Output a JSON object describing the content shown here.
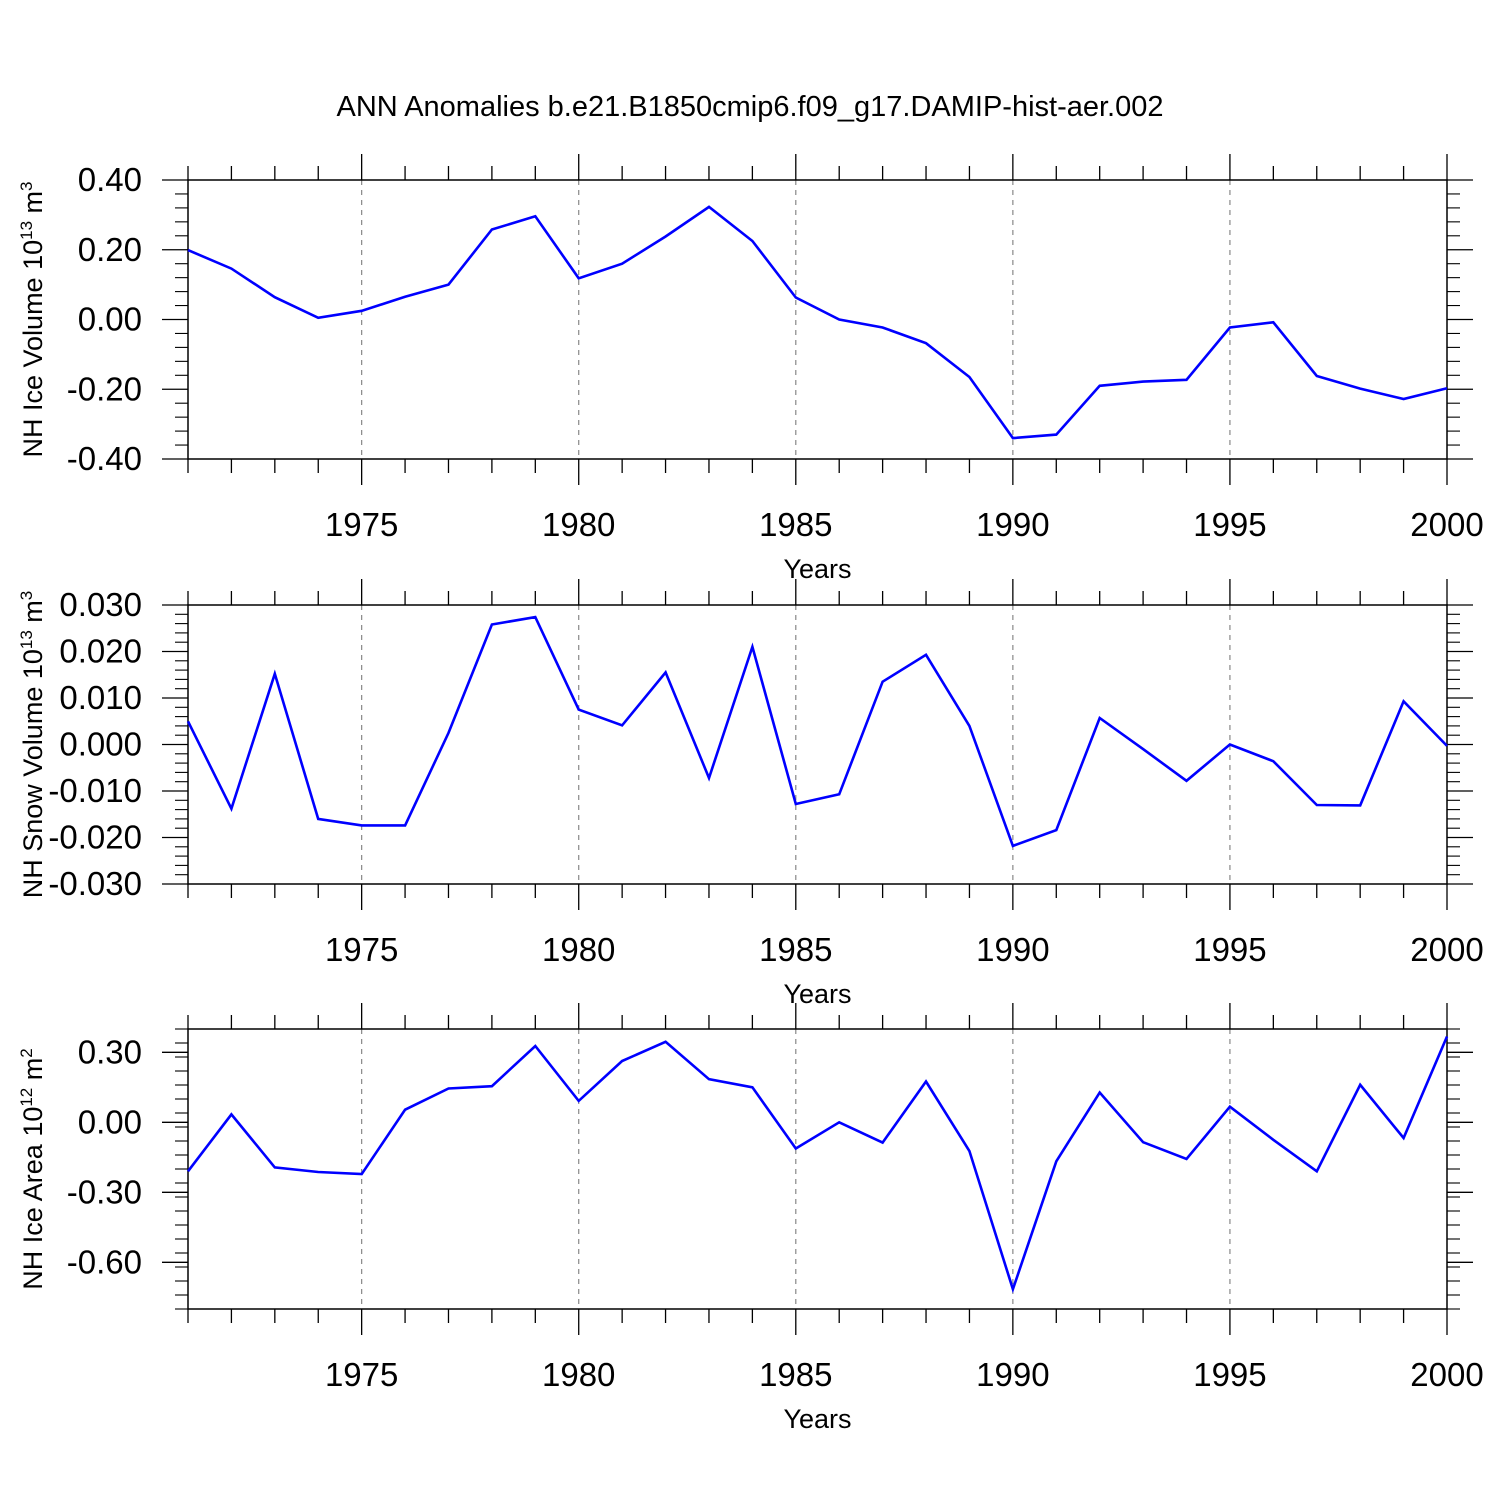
{
  "title": "ANN Anomalies b.e21.B1850cmip6.f09_g17.DAMIP-hist-aer.002",
  "line_color": "#0000ff",
  "chart_data": [
    {
      "type": "line",
      "xlabel": "Years",
      "ylabel": {
        "main": "NH Ice Volume 10",
        "exp": "13",
        "unit": " m",
        "unit_exp": "3"
      },
      "xlim": [
        1971,
        2000
      ],
      "ylim": [
        -0.4,
        0.4
      ],
      "xticks": [
        1975,
        1980,
        1985,
        1990,
        1995,
        2000
      ],
      "xtick_labels": [
        "1975",
        "1980",
        "1985",
        "1990",
        "1995",
        "2000"
      ],
      "yticks": [
        0.4,
        0.2,
        0.0,
        -0.2,
        -0.4
      ],
      "ytick_labels": [
        "0.40",
        "0.20",
        "0.00",
        "-0.20",
        "-0.40"
      ],
      "x": [
        1971,
        1972,
        1973,
        1974,
        1975,
        1976,
        1977,
        1978,
        1979,
        1980,
        1981,
        1982,
        1983,
        1984,
        1985,
        1986,
        1987,
        1988,
        1989,
        1990,
        1991,
        1992,
        1993,
        1994,
        1995,
        1996,
        1997,
        1998,
        1999,
        2000
      ],
      "values": [
        0.199,
        0.146,
        0.064,
        0.005,
        0.025,
        0.065,
        0.1,
        0.258,
        0.296,
        0.118,
        0.16,
        0.238,
        0.323,
        0.225,
        0.063,
        0.0,
        -0.023,
        -0.068,
        -0.165,
        -0.34,
        -0.33,
        -0.19,
        -0.178,
        -0.173,
        -0.023,
        -0.008,
        -0.162,
        -0.198,
        -0.228,
        -0.197
      ]
    },
    {
      "type": "line",
      "xlabel": "Years",
      "ylabel": {
        "main": "NH Snow Volume 10",
        "exp": "13",
        "unit": " m",
        "unit_exp": "3"
      },
      "xlim": [
        1971,
        2000
      ],
      "ylim": [
        -0.03,
        0.03
      ],
      "xticks": [
        1975,
        1980,
        1985,
        1990,
        1995,
        2000
      ],
      "xtick_labels": [
        "1975",
        "1980",
        "1985",
        "1990",
        "1995",
        "2000"
      ],
      "yticks": [
        0.03,
        0.02,
        0.01,
        0.0,
        -0.01,
        -0.02,
        -0.03
      ],
      "ytick_labels": [
        "0.030",
        "0.020",
        "0.010",
        "0.000",
        "-0.010",
        "-0.020",
        "-0.030"
      ],
      "x": [
        1971,
        1972,
        1973,
        1974,
        1975,
        1976,
        1977,
        1978,
        1979,
        1980,
        1981,
        1982,
        1983,
        1984,
        1985,
        1986,
        1987,
        1988,
        1989,
        1990,
        1991,
        1992,
        1993,
        1994,
        1995,
        1996,
        1997,
        1998,
        1999,
        2000
      ],
      "values": [
        0.005,
        -0.0138,
        0.0152,
        -0.016,
        -0.0174,
        -0.0174,
        0.0025,
        0.0258,
        0.0274,
        0.0075,
        0.0041,
        0.0155,
        -0.0072,
        0.021,
        -0.0128,
        -0.0107,
        0.0135,
        0.0193,
        0.004,
        -0.0218,
        -0.0184,
        0.0057,
        -0.001,
        -0.0078,
        0.0,
        -0.0036,
        -0.013,
        -0.0131,
        0.0093,
        -0.0003
      ]
    },
    {
      "type": "line",
      "xlabel": "Years",
      "ylabel": {
        "main": "NH Ice Area 10",
        "exp": "12",
        "unit": " m",
        "unit_exp": "2"
      },
      "xlim": [
        1971,
        2000
      ],
      "ylim": [
        -0.8,
        0.4
      ],
      "xticks": [
        1975,
        1980,
        1985,
        1990,
        1995,
        2000
      ],
      "xtick_labels": [
        "1975",
        "1980",
        "1985",
        "1990",
        "1995",
        "2000"
      ],
      "yticks": [
        0.3,
        0.0,
        -0.3,
        -0.6
      ],
      "ytick_labels": [
        "0.30",
        "0.00",
        "-0.30",
        "-0.60"
      ],
      "x": [
        1971,
        1972,
        1973,
        1974,
        1975,
        1976,
        1977,
        1978,
        1979,
        1980,
        1981,
        1982,
        1983,
        1984,
        1985,
        1986,
        1987,
        1988,
        1989,
        1990,
        1991,
        1992,
        1993,
        1994,
        1995,
        1996,
        1997,
        1998,
        1999,
        2000
      ],
      "values": [
        -0.21,
        0.034,
        -0.193,
        -0.213,
        -0.222,
        0.054,
        0.145,
        0.155,
        0.327,
        0.092,
        0.263,
        0.345,
        0.185,
        0.15,
        -0.112,
        0.0,
        -0.087,
        0.175,
        -0.123,
        -0.715,
        -0.167,
        0.128,
        -0.085,
        -0.157,
        0.067,
        -0.075,
        -0.21,
        0.161,
        -0.067,
        0.368
      ]
    }
  ]
}
